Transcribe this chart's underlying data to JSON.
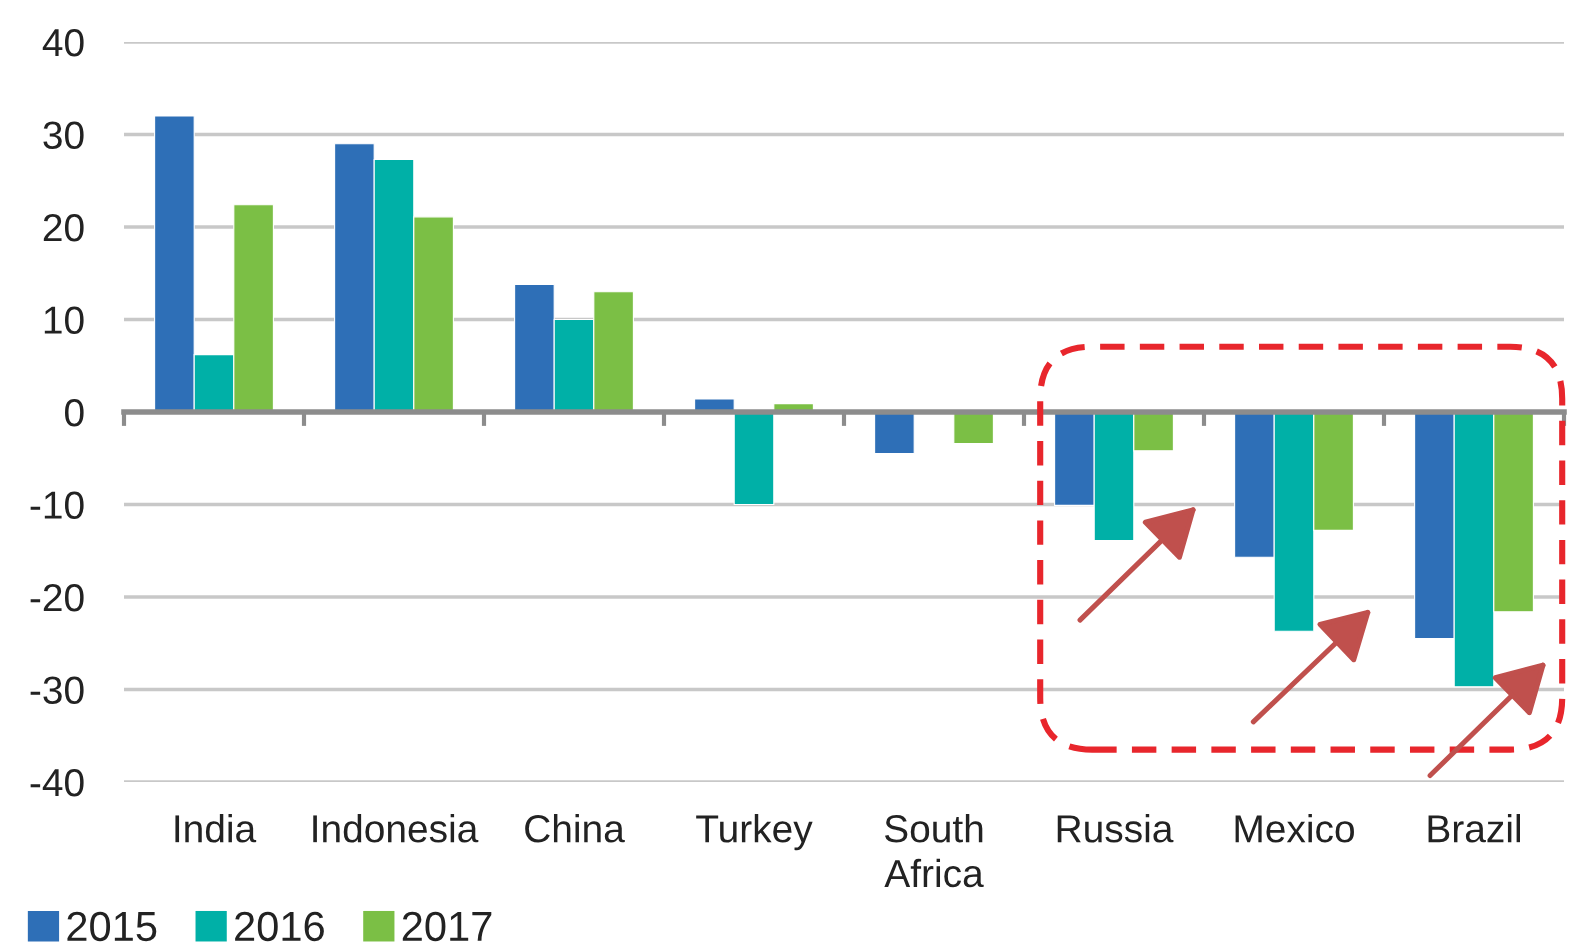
{
  "chart_data": {
    "type": "bar",
    "categories": [
      "India",
      "Indonesia",
      "China",
      "Turkey",
      "South Africa",
      "Russia",
      "Mexico",
      "Brazil"
    ],
    "series": [
      {
        "name": "2015",
        "color": "#2e6fb7",
        "values": [
          32.0,
          29.0,
          13.8,
          1.4,
          -4.5,
          -10.1,
          -15.7,
          -24.5
        ]
      },
      {
        "name": "2016",
        "color": "#00b0a7",
        "values": [
          6.2,
          27.3,
          10.0,
          -10.0,
          null,
          -13.9,
          -23.7,
          -29.7
        ]
      },
      {
        "name": "2017",
        "color": "#7bbf45",
        "values": [
          22.4,
          21.1,
          13.0,
          0.9,
          -3.4,
          -4.2,
          -12.8,
          -21.6
        ]
      }
    ],
    "ylim": [
      -40,
      40
    ],
    "yticks": [
      -40,
      -30,
      -20,
      -10,
      0,
      10,
      20,
      30,
      40
    ],
    "grid": "y",
    "legend": "bottom left"
  }
}
